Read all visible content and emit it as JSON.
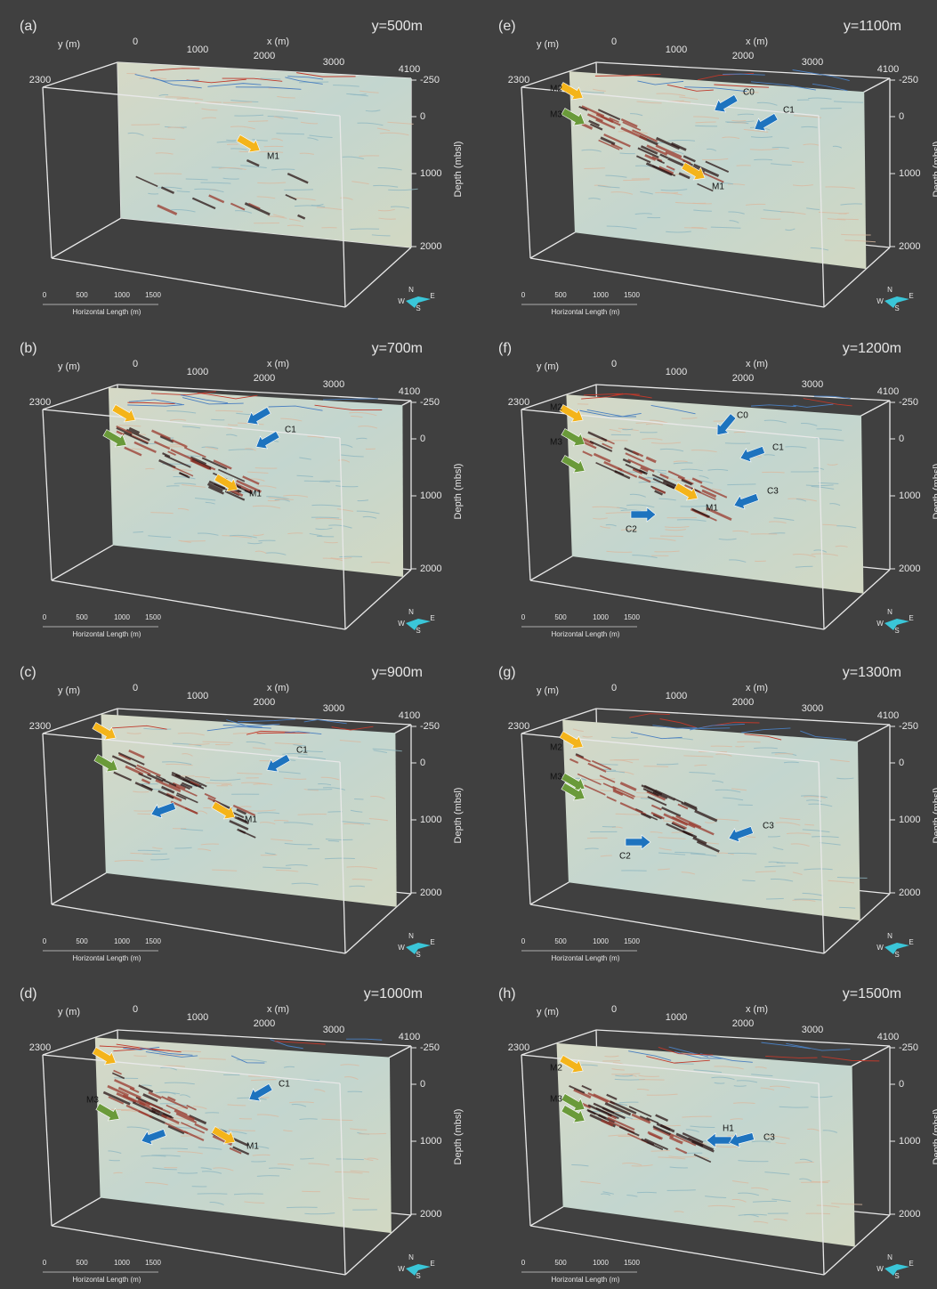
{
  "panels": [
    {
      "label": "(a)",
      "title": "y=500m",
      "annotations": [
        "M1"
      ]
    },
    {
      "label": "(b)",
      "title": "y=700m",
      "annotations": [
        "C1",
        "M1"
      ]
    },
    {
      "label": "(c)",
      "title": "y=900m",
      "annotations": [
        "C1",
        "M1"
      ]
    },
    {
      "label": "(d)",
      "title": "y=1000m",
      "annotations": [
        "M3",
        "C1",
        "M1"
      ]
    },
    {
      "label": "(e)",
      "title": "y=1100m",
      "annotations": [
        "M2",
        "M3",
        "C0",
        "C1",
        "M1"
      ]
    },
    {
      "label": "(f)",
      "title": "y=1200m",
      "annotations": [
        "M2",
        "M3",
        "C0",
        "C1",
        "C3",
        "M1",
        "C2"
      ]
    },
    {
      "label": "(g)",
      "title": "y=1300m",
      "annotations": [
        "M2",
        "M3",
        "C3",
        "C2"
      ]
    },
    {
      "label": "(h)",
      "title": "y=1500m",
      "annotations": [
        "M2",
        "M3",
        "H1",
        "C3"
      ]
    }
  ],
  "axes": {
    "y_axis_label": "y (m)",
    "x_axis_label": "x (m)",
    "x_ticks": [
      "0",
      "1000",
      "2000",
      "3000",
      "4100"
    ],
    "y_tick": "2300",
    "depth_ticks": [
      "-250",
      "0",
      "1000",
      "2000"
    ],
    "depth_label": "Depth (mbsl)",
    "scale_ticks": [
      "0",
      "500",
      "1000",
      "1500"
    ],
    "scale_label": "Horizontal Length (m)",
    "compass": [
      "N",
      "W",
      "S",
      "E"
    ]
  },
  "arrow_colors": {
    "yellow": "#f4b41a",
    "green": "#6a9a3a",
    "blue": "#1e73be"
  }
}
